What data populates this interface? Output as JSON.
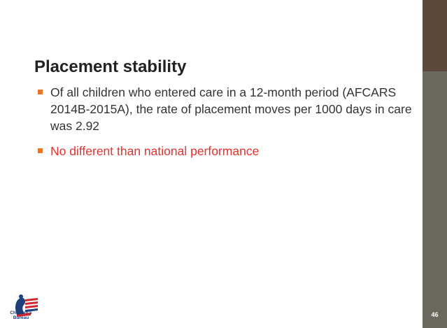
{
  "slide": {
    "title": "Placement stability",
    "bullets": [
      "Of all children who entered care in a 12-month period (AFCARS  2014B-2015A), the rate of placement moves per 1000 days in care was 2.92",
      "No different than national performance"
    ],
    "logo": {
      "line1": "Children's",
      "line2": "Bureau"
    },
    "page_number": "46"
  }
}
